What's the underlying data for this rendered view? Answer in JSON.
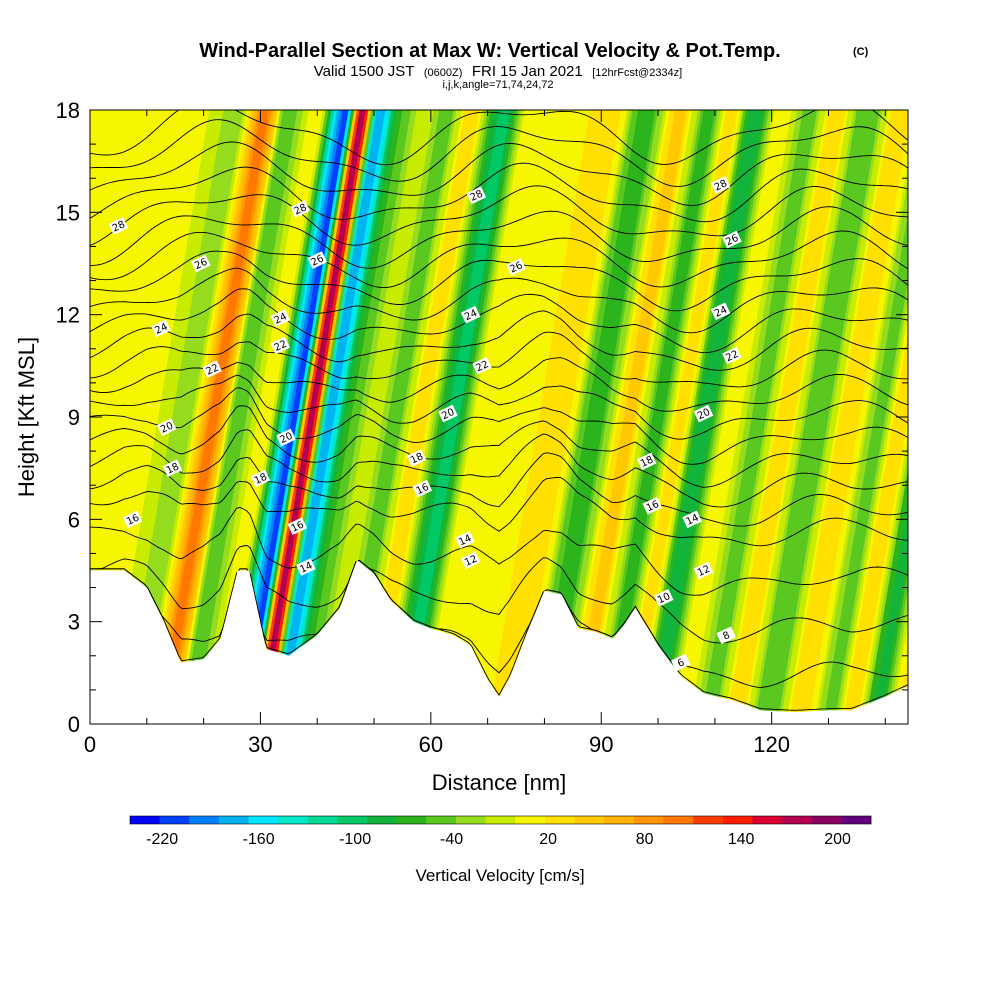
{
  "header": {
    "title": "Wind-Parallel Section at Max W: Vertical Velocity & Pot.Temp.",
    "title_mark": "(C)",
    "subtitle_main": "Valid 1500 JST",
    "subtitle_utc": "(0600Z)",
    "subtitle_date": "FRI 15 Jan 2021",
    "subtitle_fcst": "[12hrFcst@2334z]",
    "subtitle_indices": "i,j,k,angle=71,74,24,72"
  },
  "chart_data": {
    "type": "heatmap",
    "xlabel": "Distance [nm]",
    "ylabel": "Height [Kft MSL]",
    "xlim": [
      0,
      144
    ],
    "ylim": [
      0,
      18
    ],
    "x_ticks": [
      0,
      30,
      60,
      90,
      120
    ],
    "y_ticks": [
      0,
      3,
      6,
      9,
      12,
      15,
      18
    ],
    "colorbar": {
      "title": "Vertical Velocity [cm/s]",
      "levels": [
        -240,
        -220,
        -200,
        -180,
        -160,
        -140,
        -120,
        -100,
        -80,
        -60,
        -40,
        -20,
        0,
        20,
        40,
        60,
        80,
        100,
        120,
        140,
        160,
        180,
        200,
        220,
        240
      ],
      "colors": [
        "#0000ff",
        "#0040ff",
        "#0080ff",
        "#00b4f0",
        "#00e6ff",
        "#00e8c8",
        "#00d896",
        "#00c864",
        "#12b43c",
        "#2cb41c",
        "#5ac81e",
        "#96dc1e",
        "#c8ec00",
        "#f6f600",
        "#ffe000",
        "#ffc800",
        "#ffb400",
        "#ff9600",
        "#ff7800",
        "#ff3c00",
        "#ff1e00",
        "#dc0032",
        "#b40050",
        "#8c0064",
        "#640080"
      ],
      "tick_values": [
        -220,
        -160,
        -100,
        -40,
        20,
        80,
        140,
        200
      ],
      "tick_labels": [
        "-220",
        "-160",
        "-100",
        "-40",
        "20",
        "80",
        "140",
        "200"
      ]
    },
    "w_bands": [
      {
        "x": 3,
        "w": 20
      },
      {
        "x": 8,
        "w": -15
      },
      {
        "x": 13,
        "w": 130
      },
      {
        "x": 17,
        "w": -40
      },
      {
        "x": 22,
        "w": 40
      },
      {
        "x": 27,
        "w": -210
      },
      {
        "x": 30,
        "w": 220
      },
      {
        "x": 33,
        "w": -180
      },
      {
        "x": 37,
        "w": -40
      },
      {
        "x": 41,
        "w": 20
      },
      {
        "x": 45,
        "w": -40
      },
      {
        "x": 49,
        "w": 60
      },
      {
        "x": 55,
        "w": -90
      },
      {
        "x": 60,
        "w": 40
      },
      {
        "x": 66,
        "w": 20
      },
      {
        "x": 74,
        "w": 60
      },
      {
        "x": 80,
        "w": -60
      },
      {
        "x": 86,
        "w": 70
      },
      {
        "x": 91,
        "w": -50
      },
      {
        "x": 95,
        "w": 60
      },
      {
        "x": 99,
        "w": -80
      },
      {
        "x": 104,
        "w": 40
      },
      {
        "x": 109,
        "w": -40
      },
      {
        "x": 113,
        "w": 60
      },
      {
        "x": 119,
        "w": -40
      },
      {
        "x": 125,
        "w": 60
      },
      {
        "x": 130,
        "w": -30
      },
      {
        "x": 134,
        "w": 60
      },
      {
        "x": 138,
        "w": -70
      },
      {
        "x": 142,
        "w": 40
      }
    ],
    "terrain_top": [
      [
        0,
        4.5
      ],
      [
        6,
        4.5
      ],
      [
        10,
        4.0
      ],
      [
        13,
        3.0
      ],
      [
        16,
        1.8
      ],
      [
        20,
        1.9
      ],
      [
        23,
        2.5
      ],
      [
        26,
        4.5
      ],
      [
        28,
        4.5
      ],
      [
        31,
        2.2
      ],
      [
        35,
        2.0
      ],
      [
        40,
        2.6
      ],
      [
        44,
        3.4
      ],
      [
        47,
        4.8
      ],
      [
        50,
        4.4
      ],
      [
        53,
        3.6
      ],
      [
        57,
        3.0
      ],
      [
        60,
        2.8
      ],
      [
        64,
        2.6
      ],
      [
        67,
        2.3
      ],
      [
        70,
        1.3
      ],
      [
        72,
        0.8
      ],
      [
        74,
        1.4
      ],
      [
        77,
        2.7
      ],
      [
        80,
        3.9
      ],
      [
        83,
        3.8
      ],
      [
        86,
        2.8
      ],
      [
        89,
        2.7
      ],
      [
        92,
        2.5
      ],
      [
        94,
        2.9
      ],
      [
        96,
        3.4
      ],
      [
        100,
        2.3
      ],
      [
        104,
        1.4
      ],
      [
        108,
        0.9
      ],
      [
        113,
        0.7
      ],
      [
        118,
        0.4
      ],
      [
        124,
        0.35
      ],
      [
        130,
        0.4
      ],
      [
        134,
        0.4
      ],
      [
        140,
        0.8
      ],
      [
        144,
        1.1
      ]
    ],
    "theta_isentropes": [
      2,
      4,
      6,
      8,
      10,
      11,
      12,
      13,
      14,
      15,
      16,
      17,
      18,
      19,
      20,
      21,
      22,
      23,
      24,
      25,
      26,
      27,
      28
    ],
    "contour_labels": [
      {
        "text": "28",
        "x": 5,
        "y": 14.6
      },
      {
        "text": "26",
        "x": 19.5,
        "y": 13.5
      },
      {
        "text": "24",
        "x": 12.5,
        "y": 11.6
      },
      {
        "text": "22",
        "x": 21.5,
        "y": 10.4
      },
      {
        "text": "20",
        "x": 13.5,
        "y": 8.7
      },
      {
        "text": "18",
        "x": 14.5,
        "y": 7.5
      },
      {
        "text": "16",
        "x": 7.5,
        "y": 6.0
      },
      {
        "text": "28",
        "x": 37,
        "y": 15.1
      },
      {
        "text": "26",
        "x": 40,
        "y": 13.6
      },
      {
        "text": "24",
        "x": 33.5,
        "y": 11.9
      },
      {
        "text": "22",
        "x": 33.5,
        "y": 11.1
      },
      {
        "text": "20",
        "x": 34.5,
        "y": 8.4
      },
      {
        "text": "18",
        "x": 30,
        "y": 7.2
      },
      {
        "text": "16",
        "x": 36.5,
        "y": 5.8
      },
      {
        "text": "14",
        "x": 38,
        "y": 4.6
      },
      {
        "text": "28",
        "x": 68,
        "y": 15.5
      },
      {
        "text": "26",
        "x": 75,
        "y": 13.4
      },
      {
        "text": "24",
        "x": 67,
        "y": 12.0
      },
      {
        "text": "22",
        "x": 69,
        "y": 10.5
      },
      {
        "text": "20",
        "x": 63,
        "y": 9.1
      },
      {
        "text": "18",
        "x": 57.5,
        "y": 7.8
      },
      {
        "text": "16",
        "x": 58.5,
        "y": 6.9
      },
      {
        "text": "14",
        "x": 66,
        "y": 5.4
      },
      {
        "text": "12",
        "x": 67,
        "y": 4.8
      },
      {
        "text": "28",
        "x": 111,
        "y": 15.8
      },
      {
        "text": "26",
        "x": 113,
        "y": 14.2
      },
      {
        "text": "24",
        "x": 111,
        "y": 12.1
      },
      {
        "text": "22",
        "x": 113,
        "y": 10.8
      },
      {
        "text": "20",
        "x": 108,
        "y": 9.1
      },
      {
        "text": "18",
        "x": 98,
        "y": 7.7
      },
      {
        "text": "16",
        "x": 99,
        "y": 6.4
      },
      {
        "text": "14",
        "x": 106,
        "y": 6.0
      },
      {
        "text": "12",
        "x": 108,
        "y": 4.5
      },
      {
        "text": "10",
        "x": 101,
        "y": 3.7
      },
      {
        "text": "8",
        "x": 112,
        "y": 2.6
      },
      {
        "text": "6",
        "x": 104,
        "y": 1.8
      }
    ]
  }
}
